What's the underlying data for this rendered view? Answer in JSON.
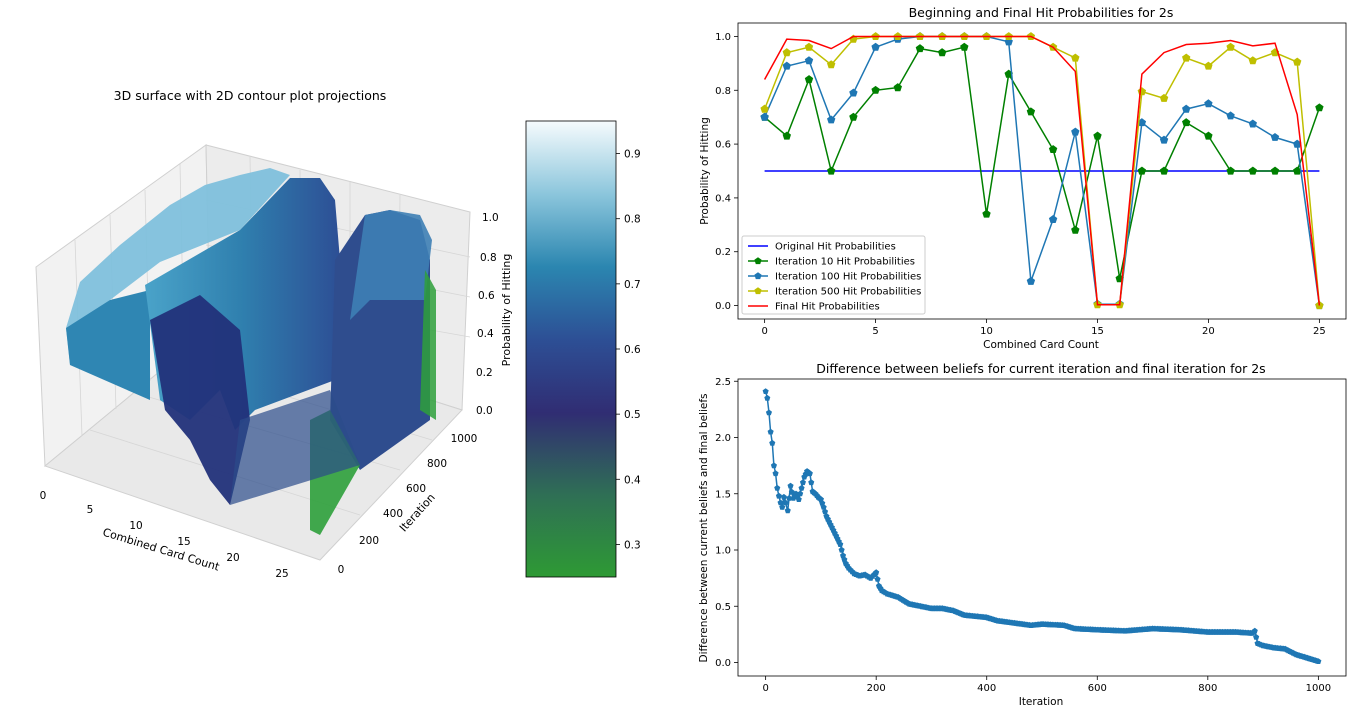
{
  "colors": {
    "original": "#0000ff",
    "iter10": "#008000",
    "iter100": "#1f77b4",
    "iter500": "#bfbf00",
    "final": "#ff0000",
    "diff": "#1f77b4"
  },
  "chart_data": [
    {
      "type": "surface3d",
      "title": "3D surface with 2D contour plot projections",
      "xlabel": "Combined Card Count",
      "ylabel": "Iteration",
      "zlabel": "Probability of Hitting",
      "xticks": [
        "0",
        "5",
        "10",
        "15",
        "20",
        "25"
      ],
      "yticks": [
        "0",
        "200",
        "400",
        "600",
        "800",
        "1000"
      ],
      "zticks": [
        "0.0",
        "0.2",
        "0.4",
        "0.6",
        "0.8",
        "1.0"
      ],
      "colorbar": {
        "ticks": [
          0.3,
          0.4,
          0.5,
          0.6,
          0.7,
          0.8,
          0.9
        ],
        "tick_labels": [
          "0.3",
          "0.4",
          "0.5",
          "0.6",
          "0.7",
          "0.8",
          "0.9"
        ],
        "range": [
          0.25,
          0.95
        ],
        "colormap": "green-navy-teal-white"
      }
    },
    {
      "type": "line",
      "title": "Beginning and Final Hit Probabilities for 2s",
      "xlabel": "Combined Card Count",
      "ylabel": "Probability of Hitting",
      "xlim": [
        -1.2,
        26.2
      ],
      "ylim": [
        -0.05,
        1.05
      ],
      "xticks": [
        0,
        5,
        10,
        15,
        20,
        25
      ],
      "yticks": [
        0.0,
        0.2,
        0.4,
        0.6,
        0.8,
        1.0
      ],
      "xtick_labels": [
        "0",
        "5",
        "10",
        "15",
        "20",
        "25"
      ],
      "ytick_labels": [
        "0.0",
        "0.2",
        "0.4",
        "0.6",
        "0.8",
        "1.0"
      ],
      "legend_position": "lower-left",
      "x": [
        0,
        1,
        2,
        3,
        4,
        5,
        6,
        7,
        8,
        9,
        10,
        11,
        12,
        13,
        14,
        15,
        16,
        17,
        18,
        19,
        20,
        21,
        22,
        23,
        24,
        25
      ],
      "series": [
        {
          "name": "Original Hit Probabilities",
          "color": "#0000ff",
          "marker": false,
          "values": [
            0.5,
            0.5,
            0.5,
            0.5,
            0.5,
            0.5,
            0.5,
            0.5,
            0.5,
            0.5,
            0.5,
            0.5,
            0.5,
            0.5,
            0.5,
            0.5,
            0.5,
            0.5,
            0.5,
            0.5,
            0.5,
            0.5,
            0.5,
            0.5,
            0.5,
            0.5
          ]
        },
        {
          "name": "Iteration 10 Hit Probabilities",
          "color": "#008000",
          "marker": true,
          "values": [
            0.7,
            0.63,
            0.84,
            0.5,
            0.7,
            0.8,
            0.81,
            0.955,
            0.94,
            0.96,
            0.34,
            0.86,
            0.72,
            0.58,
            0.28,
            0.63,
            0.1,
            0.5,
            0.5,
            0.68,
            0.63,
            0.5,
            0.5,
            0.5,
            0.5,
            0.735
          ]
        },
        {
          "name": "Iteration 100 Hit Probabilities",
          "color": "#1f77b4",
          "marker": true,
          "values": [
            0.7,
            0.89,
            0.91,
            0.69,
            0.79,
            0.96,
            0.99,
            1.0,
            1.0,
            1.0,
            1.0,
            0.98,
            0.09,
            0.32,
            0.645,
            0.005,
            0.005,
            0.68,
            0.615,
            0.73,
            0.75,
            0.705,
            0.675,
            0.625,
            0.6,
            0.0
          ]
        },
        {
          "name": "Iteration 500 Hit Probabilities",
          "color": "#bfbf00",
          "marker": true,
          "values": [
            0.73,
            0.94,
            0.96,
            0.895,
            0.99,
            1.0,
            1.0,
            1.0,
            1.0,
            1.0,
            1.0,
            1.0,
            1.0,
            0.96,
            0.92,
            0.003,
            0.003,
            0.795,
            0.77,
            0.92,
            0.89,
            0.96,
            0.91,
            0.94,
            0.905,
            0.0
          ]
        },
        {
          "name": "Final Hit Probabilities",
          "color": "#ff0000",
          "marker": false,
          "values": [
            0.84,
            0.99,
            0.985,
            0.955,
            1.0,
            1.0,
            1.0,
            1.0,
            1.0,
            1.0,
            1.0,
            1.0,
            1.0,
            0.96,
            0.87,
            0.003,
            0.003,
            0.86,
            0.94,
            0.97,
            0.975,
            0.985,
            0.965,
            0.975,
            0.71,
            0.0
          ]
        }
      ]
    },
    {
      "type": "line",
      "title": "Difference between beliefs for current iteration and final iteration for 2s",
      "xlabel": "Iteration",
      "ylabel": "Difference between current beliefs and final beliefs",
      "xlim": [
        -50,
        1050
      ],
      "ylim": [
        -0.12,
        2.52
      ],
      "xticks": [
        0,
        200,
        400,
        600,
        800,
        1000
      ],
      "yticks": [
        0.0,
        0.5,
        1.0,
        1.5,
        2.0,
        2.5
      ],
      "xtick_labels": [
        "0",
        "200",
        "400",
        "600",
        "800",
        "1000"
      ],
      "ytick_labels": [
        "0.0",
        "0.5",
        "1.0",
        "1.5",
        "2.0",
        "2.5"
      ],
      "series": [
        {
          "name": "",
          "color": "#1f77b4",
          "marker": true,
          "points": [
            [
              0,
              2.41
            ],
            [
              3,
              2.35
            ],
            [
              6,
              2.22
            ],
            [
              9,
              2.05
            ],
            [
              12,
              1.95
            ],
            [
              15,
              1.75
            ],
            [
              18,
              1.68
            ],
            [
              21,
              1.55
            ],
            [
              24,
              1.48
            ],
            [
              27,
              1.42
            ],
            [
              30,
              1.38
            ],
            [
              33,
              1.47
            ],
            [
              36,
              1.42
            ],
            [
              40,
              1.35
            ],
            [
              45,
              1.57
            ],
            [
              50,
              1.46
            ],
            [
              55,
              1.5
            ],
            [
              60,
              1.45
            ],
            [
              65,
              1.55
            ],
            [
              70,
              1.65
            ],
            [
              75,
              1.7
            ],
            [
              80,
              1.68
            ],
            [
              85,
              1.52
            ],
            [
              90,
              1.5
            ],
            [
              95,
              1.47
            ],
            [
              100,
              1.45
            ],
            [
              105,
              1.38
            ],
            [
              110,
              1.3
            ],
            [
              115,
              1.25
            ],
            [
              120,
              1.2
            ],
            [
              125,
              1.15
            ],
            [
              130,
              1.1
            ],
            [
              135,
              1.05
            ],
            [
              140,
              0.95
            ],
            [
              145,
              0.88
            ],
            [
              150,
              0.84
            ],
            [
              160,
              0.79
            ],
            [
              170,
              0.77
            ],
            [
              180,
              0.78
            ],
            [
              190,
              0.75
            ],
            [
              200,
              0.8
            ],
            [
              205,
              0.68
            ],
            [
              210,
              0.64
            ],
            [
              220,
              0.61
            ],
            [
              240,
              0.58
            ],
            [
              260,
              0.52
            ],
            [
              280,
              0.5
            ],
            [
              300,
              0.48
            ],
            [
              320,
              0.48
            ],
            [
              340,
              0.46
            ],
            [
              360,
              0.42
            ],
            [
              380,
              0.41
            ],
            [
              400,
              0.4
            ],
            [
              420,
              0.37
            ],
            [
              450,
              0.35
            ],
            [
              480,
              0.33
            ],
            [
              500,
              0.34
            ],
            [
              540,
              0.33
            ],
            [
              560,
              0.3
            ],
            [
              600,
              0.29
            ],
            [
              650,
              0.28
            ],
            [
              700,
              0.3
            ],
            [
              750,
              0.29
            ],
            [
              800,
              0.27
            ],
            [
              850,
              0.27
            ],
            [
              880,
              0.26
            ],
            [
              885,
              0.28
            ],
            [
              890,
              0.17
            ],
            [
              900,
              0.15
            ],
            [
              920,
              0.13
            ],
            [
              940,
              0.12
            ],
            [
              960,
              0.07
            ],
            [
              980,
              0.04
            ],
            [
              1000,
              0.01
            ]
          ]
        }
      ]
    }
  ]
}
